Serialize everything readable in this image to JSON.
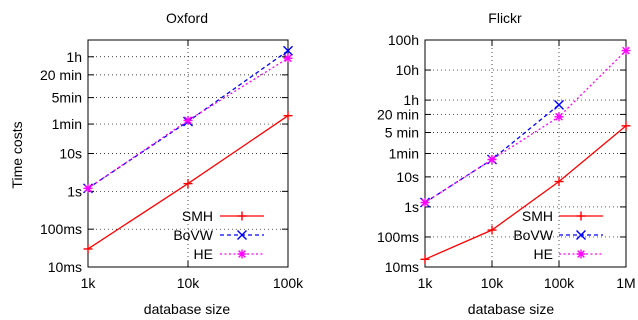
{
  "chart_data": [
    {
      "type": "line",
      "title": "Oxford",
      "xlabel": "database size",
      "ylabel": "Time costs",
      "xscale": "log",
      "yscale": "log",
      "x_ticks": [
        {
          "value": 1000,
          "label": "1k"
        },
        {
          "value": 10000,
          "label": "10k"
        },
        {
          "value": 100000,
          "label": "100k"
        }
      ],
      "y_ticks": [
        {
          "value": 0.01,
          "label": "10ms"
        },
        {
          "value": 0.1,
          "label": "100ms"
        },
        {
          "value": 1,
          "label": "1s"
        },
        {
          "value": 10,
          "label": "10s"
        },
        {
          "value": 60,
          "label": "1min"
        },
        {
          "value": 300,
          "label": "5min"
        },
        {
          "value": 1200,
          "label": "20 min"
        },
        {
          "value": 3600,
          "label": "1h"
        }
      ],
      "xlim": [
        1000,
        100000
      ],
      "ylim": [
        0.01,
        10000
      ],
      "grid": true,
      "legend_position": "bottom-right",
      "series": [
        {
          "name": "SMH",
          "color": "#ff0000",
          "marker": "plus",
          "dash": "solid",
          "x": [
            1000,
            10000,
            100000
          ],
          "y": [
            0.03,
            1.6,
            100
          ]
        },
        {
          "name": "BoVW",
          "color": "#0000ff",
          "marker": "x",
          "dash": "dashed",
          "x": [
            1000,
            10000,
            100000
          ],
          "y": [
            1.2,
            70,
            5200
          ]
        },
        {
          "name": "HE",
          "color": "#ff00ff",
          "marker": "star",
          "dash": "dotted",
          "x": [
            1000,
            10000,
            100000
          ],
          "y": [
            1.2,
            75,
            3300
          ]
        }
      ]
    },
    {
      "type": "line",
      "title": "Flickr",
      "xlabel": "database size",
      "ylabel": "",
      "xscale": "log",
      "yscale": "log",
      "x_ticks": [
        {
          "value": 1000,
          "label": "1k"
        },
        {
          "value": 10000,
          "label": "10k"
        },
        {
          "value": 100000,
          "label": "100k"
        },
        {
          "value": 1000000,
          "label": "1M"
        }
      ],
      "y_ticks": [
        {
          "value": 0.01,
          "label": "10ms"
        },
        {
          "value": 0.1,
          "label": "100ms"
        },
        {
          "value": 1,
          "label": "1s"
        },
        {
          "value": 10,
          "label": "10s"
        },
        {
          "value": 60,
          "label": "1min"
        },
        {
          "value": 300,
          "label": "5 min"
        },
        {
          "value": 1200,
          "label": "20 min"
        },
        {
          "value": 3600,
          "label": "1h"
        },
        {
          "value": 36000,
          "label": "10h"
        },
        {
          "value": 360000,
          "label": "100h"
        }
      ],
      "xlim": [
        1000,
        1000000
      ],
      "ylim": [
        0.01,
        360000
      ],
      "grid": true,
      "legend_position": "bottom-right",
      "series": [
        {
          "name": "SMH",
          "color": "#ff0000",
          "marker": "plus",
          "dash": "solid",
          "x": [
            1000,
            10000,
            100000,
            1000000
          ],
          "y": [
            0.018,
            0.17,
            7,
            500
          ]
        },
        {
          "name": "BoVW",
          "color": "#0000ff",
          "marker": "x",
          "dash": "dashed",
          "x": [
            1000,
            10000,
            100000
          ],
          "y": [
            1.4,
            38,
            2500
          ]
        },
        {
          "name": "HE",
          "color": "#ff00ff",
          "marker": "star",
          "dash": "dotted",
          "x": [
            1000,
            10000,
            100000,
            1000000
          ],
          "y": [
            1.4,
            38,
            1000,
            160000
          ]
        }
      ]
    }
  ]
}
